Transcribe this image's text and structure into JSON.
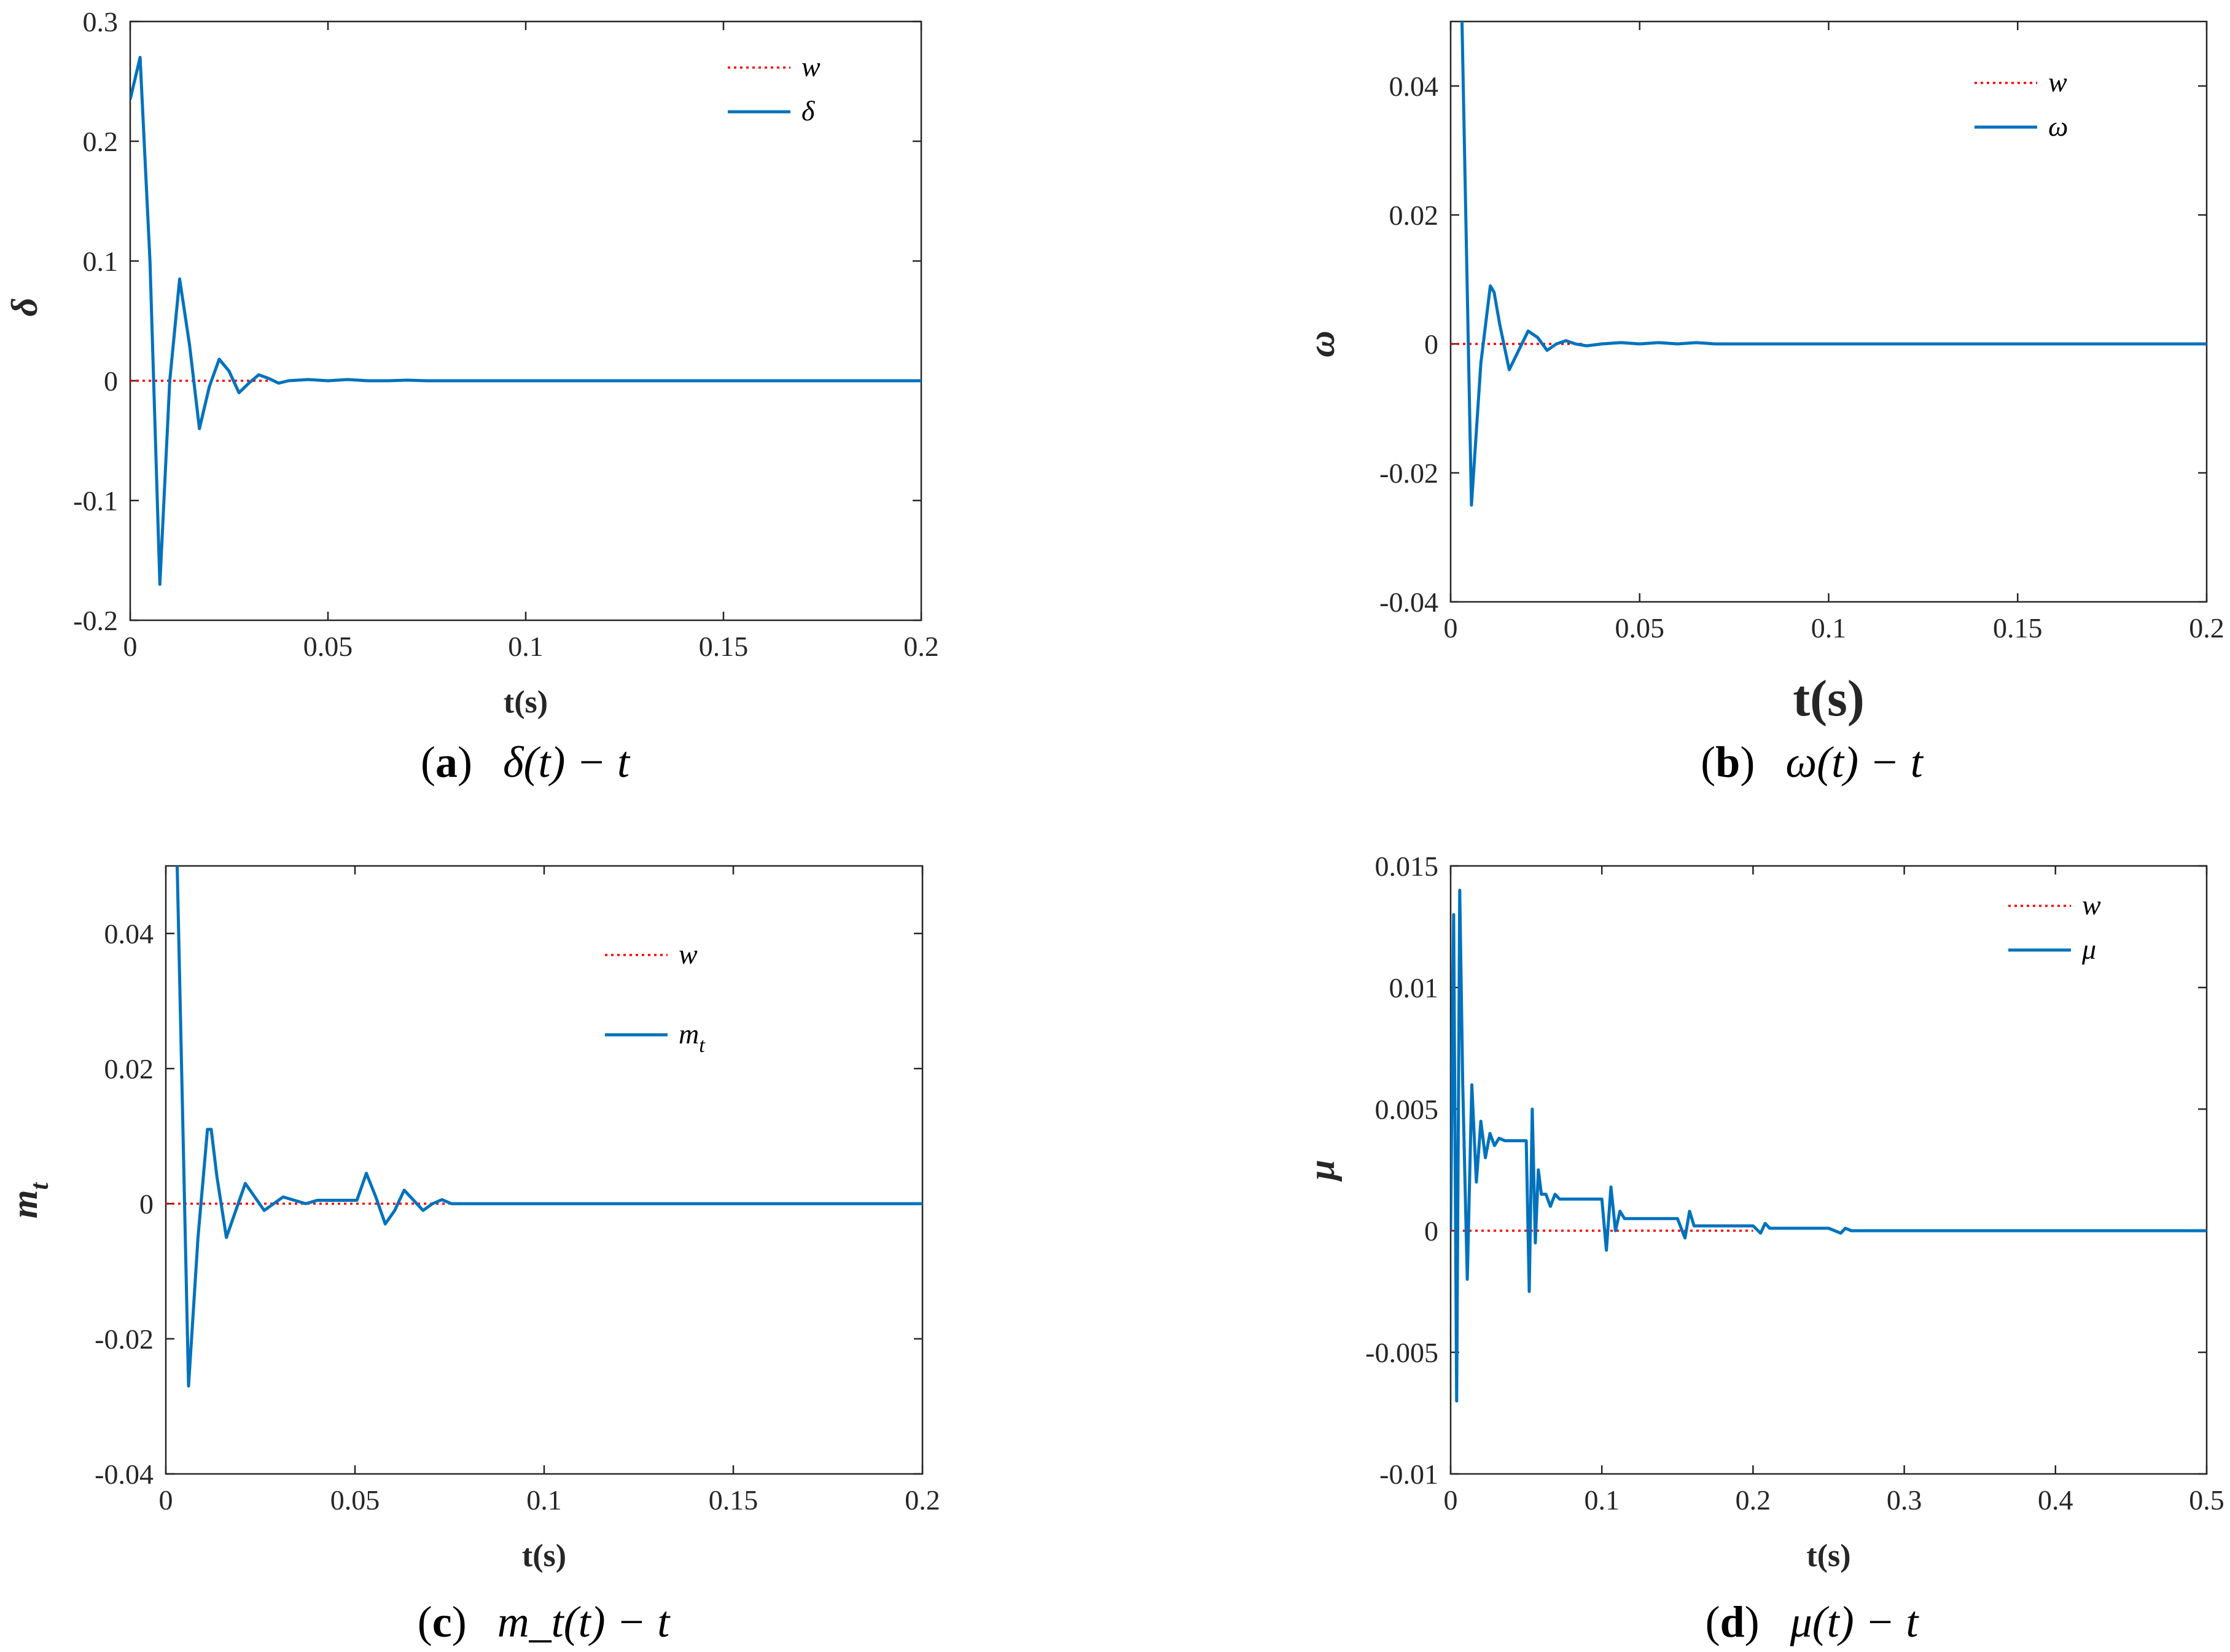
{
  "colors": {
    "series": "#0072BD",
    "reference": "#FF0000",
    "axis": "#262626"
  },
  "chart_data": [
    {
      "id": "a",
      "type": "line",
      "xlabel": "t(s)",
      "ylabel": "δ",
      "xlim": [
        0,
        0.2
      ],
      "ylim": [
        -0.2,
        0.3
      ],
      "xticks": [
        0,
        0.05,
        0.1,
        0.15,
        0.2
      ],
      "xtick_labels": [
        "0",
        "0.05",
        "0.1",
        "0.15",
        "0.2"
      ],
      "yticks": [
        -0.2,
        -0.1,
        0,
        0.1,
        0.2,
        0.3
      ],
      "ytick_labels": [
        "-0.2",
        "-0.1",
        "0",
        "0.1",
        "0.2",
        "0.3"
      ],
      "legend": {
        "position": "top-right",
        "entries": [
          "w",
          "δ"
        ]
      },
      "caption": {
        "label": "(a)",
        "formula": "δ(t) − t"
      },
      "series": [
        {
          "name": "w",
          "style": "dotted",
          "x": [
            0,
            0.035
          ],
          "y": [
            0,
            0
          ]
        },
        {
          "name": "δ",
          "style": "solid",
          "x": [
            0,
            0.0025,
            0.005,
            0.0075,
            0.01,
            0.0125,
            0.015,
            0.0175,
            0.02,
            0.0225,
            0.025,
            0.0275,
            0.03,
            0.0325,
            0.035,
            0.0375,
            0.04,
            0.045,
            0.05,
            0.055,
            0.06,
            0.065,
            0.07,
            0.075,
            0.08,
            0.2
          ],
          "y": [
            0.235,
            0.27,
            0.1,
            -0.17,
            0.0,
            0.085,
            0.03,
            -0.04,
            -0.005,
            0.018,
            0.008,
            -0.01,
            -0.002,
            0.005,
            0.002,
            -0.002,
            0,
            0.001,
            0,
            0.001,
            0,
            0,
            0.0005,
            0,
            0,
            0
          ]
        }
      ]
    },
    {
      "id": "b",
      "type": "line",
      "xlabel": "t(s)",
      "ylabel": "ω",
      "xlim": [
        0,
        0.2
      ],
      "ylim": [
        -0.04,
        0.05
      ],
      "xticks": [
        0,
        0.05,
        0.1,
        0.15,
        0.2
      ],
      "xtick_labels": [
        "0",
        "0.05",
        "0.1",
        "0.15",
        "0.2"
      ],
      "yticks": [
        -0.04,
        -0.02,
        0,
        0.02,
        0.04
      ],
      "ytick_labels": [
        "-0.04",
        "-0.02",
        "0",
        "0.02",
        "0.04"
      ],
      "legend": {
        "position": "top-right",
        "entries": [
          "w",
          "ω"
        ]
      },
      "caption": {
        "label": "(b)",
        "formula": "ω(t) − t"
      },
      "series": [
        {
          "name": "w",
          "style": "dotted",
          "x": [
            0,
            0.035
          ],
          "y": [
            0,
            0
          ]
        },
        {
          "name": "ω",
          "style": "solid",
          "x": [
            0.003,
            0.0055,
            0.008,
            0.0105,
            0.0115,
            0.013,
            0.0155,
            0.018,
            0.0205,
            0.023,
            0.0255,
            0.028,
            0.0305,
            0.033,
            0.036,
            0.04,
            0.045,
            0.05,
            0.055,
            0.06,
            0.065,
            0.07,
            0.075,
            0.2
          ],
          "y": [
            0.05,
            -0.025,
            -0.003,
            0.009,
            0.008,
            0.003,
            -0.004,
            -0.001,
            0.002,
            0.001,
            -0.001,
            0,
            0.0005,
            0,
            -0.0003,
            0,
            0.0002,
            0,
            0.0002,
            0,
            0.0002,
            0,
            0,
            0
          ]
        }
      ]
    },
    {
      "id": "c",
      "type": "line",
      "xlabel": "t(s)",
      "ylabel": "m_t",
      "xlim": [
        0,
        0.2
      ],
      "ylim": [
        -0.04,
        0.05
      ],
      "xticks": [
        0,
        0.05,
        0.1,
        0.15,
        0.2
      ],
      "xtick_labels": [
        "0",
        "0.05",
        "0.1",
        "0.15",
        "0.2"
      ],
      "yticks": [
        -0.04,
        -0.02,
        0,
        0.02,
        0.04
      ],
      "ytick_labels": [
        "-0.04",
        "-0.02",
        "0",
        "0.02",
        "0.04"
      ],
      "legend": {
        "position": "top-right",
        "entries": [
          "w",
          "m_t"
        ]
      },
      "caption": {
        "label": "(c)",
        "formula": "m_t(t) − t"
      },
      "series": [
        {
          "name": "w",
          "style": "dotted",
          "x": [
            0,
            0.075
          ],
          "y": [
            0,
            0
          ]
        },
        {
          "name": "m_t",
          "style": "solid",
          "x": [
            0.003,
            0.006,
            0.0085,
            0.011,
            0.012,
            0.0135,
            0.016,
            0.0185,
            0.021,
            0.0235,
            0.026,
            0.0285,
            0.031,
            0.034,
            0.037,
            0.04,
            0.045,
            0.05,
            0.0505,
            0.053,
            0.0555,
            0.058,
            0.0605,
            0.063,
            0.0655,
            0.068,
            0.0705,
            0.073,
            0.0755,
            0.08,
            0.2
          ],
          "y": [
            0.05,
            -0.027,
            -0.005,
            0.011,
            0.011,
            0.004,
            -0.005,
            -0.001,
            0.003,
            0.001,
            -0.001,
            0,
            0.001,
            0.0005,
            0,
            0.0005,
            0.0005,
            0.0005,
            0.0005,
            0.0045,
            0.001,
            -0.003,
            -0.001,
            0.002,
            0.0005,
            -0.001,
            0,
            0.0006,
            0,
            0,
            0
          ]
        }
      ]
    },
    {
      "id": "d",
      "type": "line",
      "xlabel": "t(s)",
      "ylabel": "μ",
      "xlim": [
        0,
        0.5
      ],
      "ylim": [
        -0.01,
        0.015
      ],
      "xticks": [
        0,
        0.1,
        0.2,
        0.3,
        0.4,
        0.5
      ],
      "xtick_labels": [
        "0",
        "0.1",
        "0.2",
        "0.3",
        "0.4",
        "0.5"
      ],
      "yticks": [
        -0.01,
        -0.005,
        0,
        0.005,
        0.01,
        0.015
      ],
      "ytick_labels": [
        "-0.01",
        "-0.005",
        "0",
        "0.005",
        "0.01",
        "0.015"
      ],
      "legend": {
        "position": "top-right",
        "entries": [
          "w",
          "μ"
        ]
      },
      "caption": {
        "label": "(d)",
        "formula": "μ(t) − t"
      },
      "series": [
        {
          "name": "w",
          "style": "dotted",
          "x": [
            0,
            0.2
          ],
          "y": [
            0,
            0
          ]
        },
        {
          "name": "μ",
          "style": "solid",
          "x": [
            0,
            0.002,
            0.004,
            0.006,
            0.008,
            0.011,
            0.014,
            0.017,
            0.02,
            0.023,
            0.026,
            0.029,
            0.032,
            0.036,
            0.04,
            0.045,
            0.05,
            0.052,
            0.054,
            0.056,
            0.058,
            0.06,
            0.063,
            0.066,
            0.069,
            0.072,
            0.075,
            0.078,
            0.082,
            0.088,
            0.095,
            0.1,
            0.103,
            0.106,
            0.109,
            0.112,
            0.115,
            0.118,
            0.121,
            0.125,
            0.13,
            0.14,
            0.15,
            0.155,
            0.158,
            0.161,
            0.164,
            0.167,
            0.17,
            0.18,
            0.2,
            0.205,
            0.208,
            0.211,
            0.215,
            0.25,
            0.258,
            0.261,
            0.265,
            0.3,
            0.36,
            0.5
          ],
          "y": [
            0,
            0.013,
            -0.007,
            0.014,
            0.006,
            -0.002,
            0.006,
            0.002,
            0.0045,
            0.003,
            0.004,
            0.0035,
            0.0038,
            0.0037,
            0.0037,
            0.0037,
            0.0037,
            -0.0025,
            0.005,
            -0.0005,
            0.0025,
            0.0015,
            0.0015,
            0.001,
            0.0015,
            0.0013,
            0.0013,
            0.0013,
            0.0013,
            0.0013,
            0.0013,
            0.0013,
            -0.0008,
            0.0018,
            0,
            0.0008,
            0.0005,
            0.0005,
            0.0005,
            0.0005,
            0.0005,
            0.0005,
            0.0005,
            -0.0003,
            0.0008,
            0.0002,
            0.0002,
            0.0002,
            0.0002,
            0.0002,
            0.0002,
            -0.0001,
            0.0003,
            0.0001,
            0.0001,
            0.0001,
            -0.0001,
            0.0001,
            0,
            0,
            0,
            0
          ]
        }
      ]
    }
  ]
}
